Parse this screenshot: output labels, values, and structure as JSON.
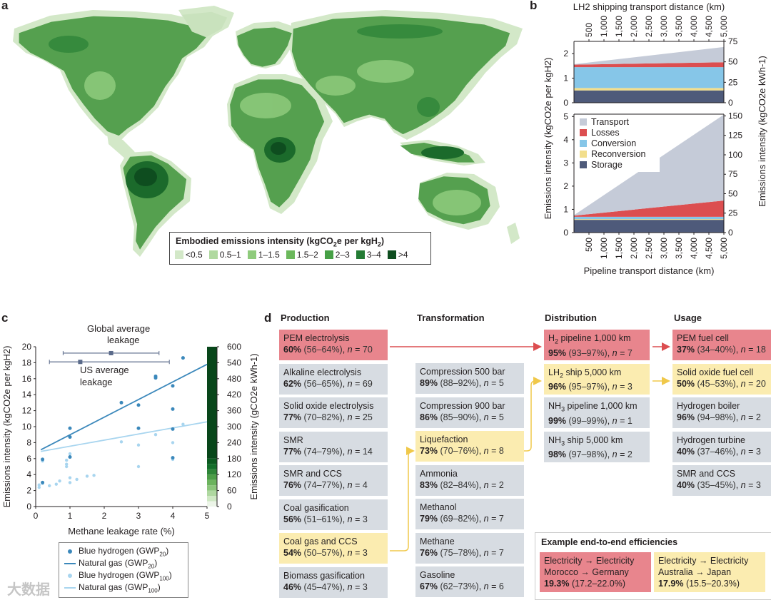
{
  "panel_labels": {
    "a": "a",
    "b": "b",
    "c": "c",
    "d": "d"
  },
  "panel_a": {
    "legend_title_pre": "Embodied emissions intensity (kgCO",
    "legend_title_sub": "2",
    "legend_title_post": "e per kgH",
    "legend_title_sub2": "2",
    "legend_title_end": ")",
    "legend_items": [
      {
        "label": "<0.5",
        "color": "#d3e8c8"
      },
      {
        "label": "0.5–1",
        "color": "#b0d9a0"
      },
      {
        "label": "1–1.5",
        "color": "#8fcb7c"
      },
      {
        "label": "1.5–2",
        "color": "#6cb85c"
      },
      {
        "label": "2–3",
        "color": "#47a046"
      },
      {
        "label": "3–4",
        "color": "#247b34"
      },
      {
        "label": ">4",
        "color": "#0e4d1f"
      }
    ],
    "ocean_color": "#ffffff"
  },
  "chart_data": [
    {
      "id": "b-top",
      "type": "area",
      "title": "LH2 shipping transport distance (km)",
      "x": [
        0,
        5000
      ],
      "xticks": [
        "500",
        "1,000",
        "1,500",
        "2,000",
        "2,500",
        "3,000",
        "3,500",
        "4,000",
        "4,500",
        "5,000"
      ],
      "ylim": [
        0,
        2.5
      ],
      "yticks": [
        "0",
        "1",
        "2"
      ],
      "y2ticks": [
        "0",
        "25",
        "50",
        "75"
      ],
      "series": [
        {
          "name": "Storage",
          "color": "#4e5a7a",
          "values": [
            0.5,
            0.5
          ]
        },
        {
          "name": "Reconversion",
          "color": "#f2de8c",
          "values": [
            0.1,
            0.1
          ]
        },
        {
          "name": "Conversion",
          "color": "#86c6e8",
          "values": [
            0.85,
            0.85
          ]
        },
        {
          "name": "Losses",
          "color": "#dc4e50",
          "values": [
            0.1,
            0.2
          ]
        },
        {
          "name": "Transport",
          "color": "#c5cbd8",
          "values": [
            0.02,
            0.62
          ]
        }
      ]
    },
    {
      "id": "b-bottom",
      "type": "area",
      "xlabel": "Pipeline transport distance (km)",
      "ylabel": "Emissions intensity (kgCO2e per kgH2)",
      "y2label": "Emissions intensity (kgCO2e kWh-1)",
      "x": [
        0,
        5000
      ],
      "xticks": [
        "500",
        "1,000",
        "1,500",
        "2,000",
        "2,500",
        "3,000",
        "3,500",
        "4,000",
        "4,500",
        "5,000"
      ],
      "ylim": [
        0,
        5.1
      ],
      "yticks": [
        "0",
        "1",
        "2",
        "3",
        "4",
        "5"
      ],
      "y2ticks": [
        "0",
        "25",
        "50",
        "75",
        "100",
        "125",
        "150"
      ],
      "legend": [
        "Transport",
        "Losses",
        "Conversion",
        "Reconversion",
        "Storage"
      ],
      "series": [
        {
          "name": "Storage",
          "color": "#4e5a7a",
          "values": [
            0.55,
            0.55
          ]
        },
        {
          "name": "Reconversion",
          "color": "#f2de8c",
          "values": [
            0.03,
            0.03
          ]
        },
        {
          "name": "Conversion",
          "color": "#86c6e8",
          "values": [
            0.1,
            0.1
          ]
        },
        {
          "name": "Losses",
          "color": "#dc4e50",
          "values": [
            0.05,
            0.7
          ]
        },
        {
          "name": "Transport",
          "color": "#c5cbd8",
          "values": [
            0.02,
            3.7
          ]
        }
      ]
    },
    {
      "id": "c",
      "type": "scatter",
      "xlabel": "Methane leakage rate (%)",
      "ylabel": "Emissions intensity (kgCO2e per kgH2)",
      "y2label": "Emissions intensity (gCO2e kWh-1)",
      "xlim": [
        0,
        5
      ],
      "ylim": [
        0,
        20
      ],
      "xticks": [
        "0",
        "1",
        "2",
        "3",
        "4",
        "5"
      ],
      "yticks": [
        "0",
        "2",
        "4",
        "6",
        "8",
        "10",
        "12",
        "14",
        "16",
        "18",
        "20"
      ],
      "y2ticks": [
        "0",
        "60",
        "120",
        "180",
        "240",
        "300",
        "360",
        "420",
        "480",
        "540",
        "600"
      ],
      "annotations": [
        "Global average leakage",
        "US average leakage"
      ],
      "global_leakage": {
        "mean": 2.2,
        "low": 0.8,
        "high": 3.6,
        "y": 19.2
      },
      "us_leakage": {
        "mean": 1.3,
        "low": 0.4,
        "high": 3.9,
        "y": 18.1
      },
      "lines": [
        {
          "name": "Natural gas (GWP20)",
          "color": "#3b88bb",
          "x": [
            0.15,
            5
          ],
          "y": [
            7.1,
            17.8
          ]
        },
        {
          "name": "Natural gas (GWP100)",
          "color": "#a8d5ef",
          "x": [
            0.15,
            5
          ],
          "y": [
            6.9,
            10.6
          ]
        }
      ],
      "points_gwp20": [
        [
          0.2,
          5.9
        ],
        [
          0.2,
          3.0
        ],
        [
          1.0,
          9.8
        ],
        [
          1.0,
          8.7
        ],
        [
          1.0,
          6.2
        ],
        [
          2.5,
          13.0
        ],
        [
          3.0,
          12.7
        ],
        [
          3.0,
          9.8
        ],
        [
          3.5,
          16.3
        ],
        [
          3.5,
          16.1
        ],
        [
          4.0,
          15.1
        ],
        [
          4.0,
          12.2
        ],
        [
          4.0,
          9.7
        ],
        [
          4.0,
          6.1
        ],
        [
          4.3,
          18.6
        ]
      ],
      "points_gwp100": [
        [
          0.1,
          2.7
        ],
        [
          0.1,
          2.4
        ],
        [
          0.2,
          5.7
        ],
        [
          0.2,
          2.9
        ],
        [
          0.4,
          2.6
        ],
        [
          0.6,
          2.8
        ],
        [
          0.7,
          3.2
        ],
        [
          0.9,
          5.8
        ],
        [
          0.9,
          5.3
        ],
        [
          0.9,
          5.0
        ],
        [
          1.0,
          3.6
        ],
        [
          1.0,
          3.0
        ],
        [
          1.2,
          3.4
        ],
        [
          1.5,
          3.8
        ],
        [
          1.7,
          3.9
        ],
        [
          1.0,
          6.6
        ],
        [
          2.5,
          8.1
        ],
        [
          3.0,
          5.0
        ],
        [
          3.0,
          7.7
        ],
        [
          3.5,
          9.0
        ],
        [
          4.0,
          5.9
        ],
        [
          4.0,
          8.0
        ],
        [
          4.3,
          10.3
        ]
      ],
      "colorbar": [
        "#ecf5e8",
        "#cfe8c4",
        "#afd8a0",
        "#8cc57c",
        "#6cb35e",
        "#4d9d48",
        "#2e8538",
        "#136e2a",
        "#0b5a20",
        "#08461a"
      ],
      "legend": [
        {
          "label": "Blue hydrogen (GWP",
          "sub": "20",
          "end": ")",
          "kind": "dot",
          "color": "#3b88bb"
        },
        {
          "label": "Natural gas (GWP",
          "sub": "20",
          "end": ")",
          "kind": "line",
          "color": "#3b88bb"
        },
        {
          "label": "Blue hydrogen (GWP",
          "sub": "100",
          "end": ")",
          "kind": "dot",
          "color": "#a8d5ef"
        },
        {
          "label": "Natural gas (GWP",
          "sub": "100",
          "end": ")",
          "kind": "line",
          "color": "#a8d5ef"
        }
      ]
    }
  ],
  "panel_d": {
    "headers": [
      "Production",
      "Transformation",
      "Distribution",
      "Usage"
    ],
    "production": [
      {
        "name": "PEM electrolysis",
        "pct": "60%",
        "range": "(56–64%)",
        "n": "70",
        "hl": "red"
      },
      {
        "name": "Alkaline electrolysis",
        "pct": "62%",
        "range": "(56–65%)",
        "n": "69",
        "hl": ""
      },
      {
        "name": "Solid oxide electrolysis",
        "pct": "77%",
        "range": "(70–82%)",
        "n": "25",
        "hl": ""
      },
      {
        "name": "SMR",
        "pct": "77%",
        "range": "(74–79%)",
        "n": "14",
        "hl": ""
      },
      {
        "name": "SMR and CCS",
        "pct": "76%",
        "range": "(74–77%)",
        "n": "4",
        "hl": ""
      },
      {
        "name": "Coal gasification",
        "pct": "56%",
        "range": "(51–61%)",
        "n": "3",
        "hl": ""
      },
      {
        "name": "Coal gas and CCS",
        "pct": "54%",
        "range": "(50–57%)",
        "n": "3",
        "hl": "yel"
      },
      {
        "name": "Biomass gasification",
        "pct": "46%",
        "range": "(45–47%)",
        "n": "3",
        "hl": ""
      }
    ],
    "transformation": [
      {
        "name": "Compression 500 bar",
        "pct": "89%",
        "range": "(88–92%)",
        "n": "5",
        "hl": ""
      },
      {
        "name": "Compression 900 bar",
        "pct": "86%",
        "range": "(85–90%)",
        "n": "5",
        "hl": ""
      },
      {
        "name": "Liquefaction",
        "pct": "73%",
        "range": "(70–76%)",
        "n": "8",
        "hl": "yel"
      },
      {
        "name": "Ammonia",
        "pct": "83%",
        "range": "(82–84%)",
        "n": "2",
        "hl": ""
      },
      {
        "name": "Methanol",
        "pct": "79%",
        "range": "(69–82%)",
        "n": "7",
        "hl": ""
      },
      {
        "name": "Methane",
        "pct": "76%",
        "range": "(75–78%)",
        "n": "7",
        "hl": ""
      },
      {
        "name": "Gasoline",
        "pct": "67%",
        "range": "(62–73%)",
        "n": "6",
        "hl": ""
      }
    ],
    "distribution": [
      {
        "pre": "H",
        "sub": "2",
        "name": " pipeline 1,000 km",
        "pct": "95%",
        "range": "(93–97%)",
        "n": "7",
        "hl": "red"
      },
      {
        "pre": "LH",
        "sub": "2",
        "name": " ship 5,000 km",
        "pct": "96%",
        "range": "(95–97%)",
        "n": "3",
        "hl": "yel"
      },
      {
        "pre": "NH",
        "sub": "3",
        "name": " pipeline 1,000 km",
        "pct": "99%",
        "range": "(99–99%)",
        "n": "1",
        "hl": ""
      },
      {
        "pre": "NH",
        "sub": "3",
        "name": " ship 5,000 km",
        "pct": "98%",
        "range": "(97–98%)",
        "n": "2",
        "hl": ""
      }
    ],
    "usage": [
      {
        "name": "PEM fuel cell",
        "pct": "37%",
        "range": "(34–40%)",
        "n": "18",
        "hl": "red"
      },
      {
        "name": "Solid oxide fuel cell",
        "pct": "50%",
        "range": "(45–53%)",
        "n": "20",
        "hl": "yel"
      },
      {
        "name": "Hydrogen boiler",
        "pct": "96%",
        "range": "(94–98%)",
        "n": "2",
        "hl": ""
      },
      {
        "name": "Hydrogen turbine",
        "pct": "40%",
        "range": "(37–46%)",
        "n": "3",
        "hl": ""
      },
      {
        "name": "SMR and CCS",
        "pct": "40%",
        "range": "(35–45%)",
        "n": "3",
        "hl": ""
      }
    ],
    "n_prefix": "n",
    "examples_title": "Example end-to-end efficiencies",
    "examples": [
      {
        "line1": "Electricity → Electricity",
        "line2": "Morocco → Germany",
        "pct": "19.3%",
        "range": "(17.2–22.0%)",
        "hl": "red"
      },
      {
        "line1": "Electricity → Electricity",
        "line2": "Australia → Japan",
        "pct": "17.9%",
        "range": "(15.5–20.3%)",
        "hl": "yel"
      }
    ]
  },
  "watermark": "大数据"
}
